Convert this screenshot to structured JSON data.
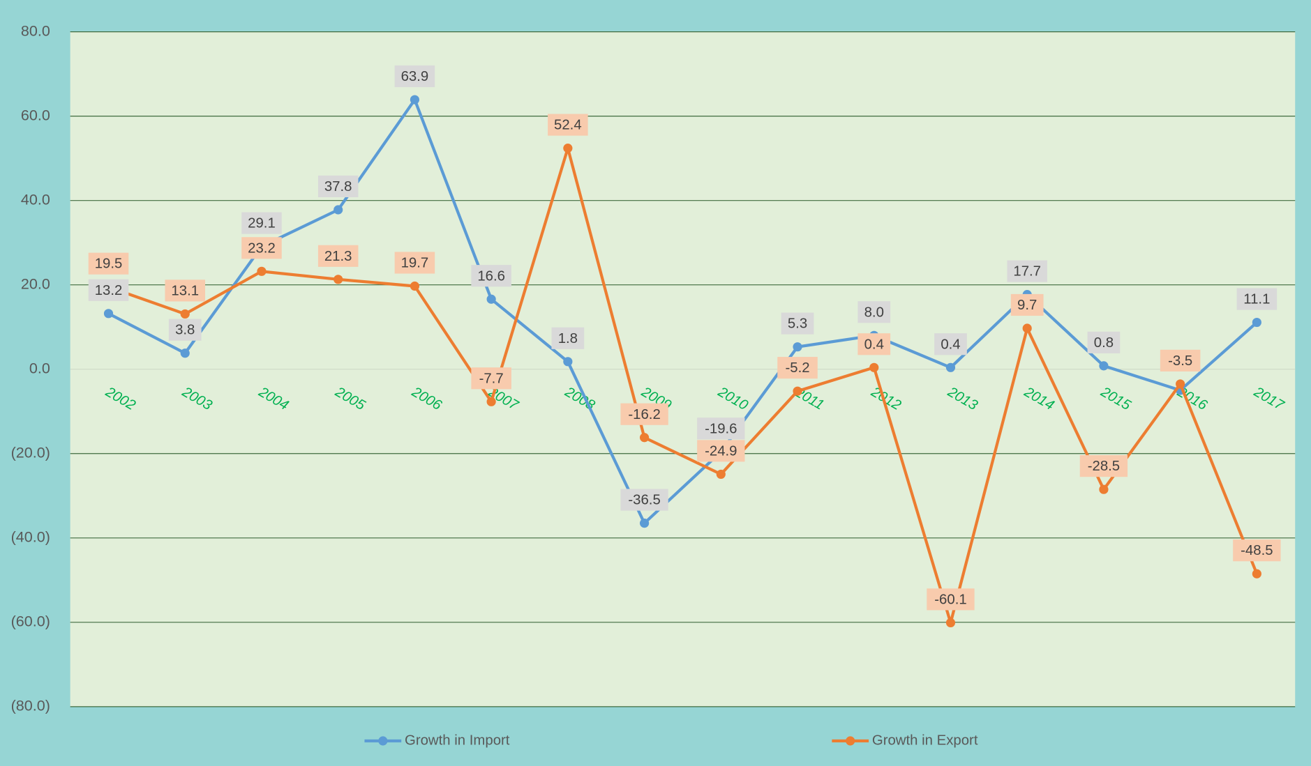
{
  "chart_data": {
    "type": "line",
    "categories": [
      "2002",
      "2003",
      "2004",
      "2005",
      "2006",
      "2007",
      "2008",
      "2009",
      "2010",
      "2011",
      "2012",
      "2013",
      "2014",
      "2015",
      "2016",
      "2017"
    ],
    "series": [
      {
        "name": "Growth in Import",
        "color": "#5b9bd5",
        "label_color": "#d9d9d9",
        "values": [
          13.2,
          3.8,
          29.1,
          37.8,
          63.9,
          16.6,
          1.8,
          -36.5,
          -19.6,
          5.3,
          8.0,
          0.4,
          17.7,
          0.8,
          -5.0,
          11.1
        ],
        "value_labels": [
          "13.2",
          "3.8",
          "29.1",
          "37.8",
          "63.9",
          "16.6",
          "1.8",
          "-36.5",
          "-19.6",
          "5.3",
          "8.0",
          "0.4",
          "17.7",
          "0.8",
          null,
          "11.1"
        ]
      },
      {
        "name": "Growth in Export",
        "color": "#ed7d31",
        "label_color": "#f8cbad",
        "values": [
          19.5,
          13.1,
          23.2,
          21.3,
          19.7,
          -7.7,
          52.4,
          -16.2,
          -24.9,
          -5.2,
          0.4,
          -60.1,
          9.7,
          -28.5,
          -3.5,
          -48.5
        ],
        "value_labels": [
          "19.5",
          "13.1",
          "23.2",
          "21.3",
          "19.7",
          "-7.7",
          "52.4",
          "-16.2",
          "-24.9",
          "-5.2",
          "0.4",
          "-60.1",
          "9.7",
          "-28.5",
          "-3.5",
          "-48.5"
        ]
      }
    ],
    "ylim": [
      -80,
      80
    ],
    "yticks": [
      {
        "value": 80,
        "label": "80.0"
      },
      {
        "value": 60,
        "label": "60.0"
      },
      {
        "value": 40,
        "label": "40.0"
      },
      {
        "value": 20,
        "label": "20.0"
      },
      {
        "value": 0,
        "label": "0.0"
      },
      {
        "value": -20,
        "label": "(20.0)"
      },
      {
        "value": -40,
        "label": "(40.0)"
      },
      {
        "value": -60,
        "label": "(60.0)"
      },
      {
        "value": -80,
        "label": "(80.0)"
      }
    ],
    "grid": true,
    "legend": "bottom"
  }
}
